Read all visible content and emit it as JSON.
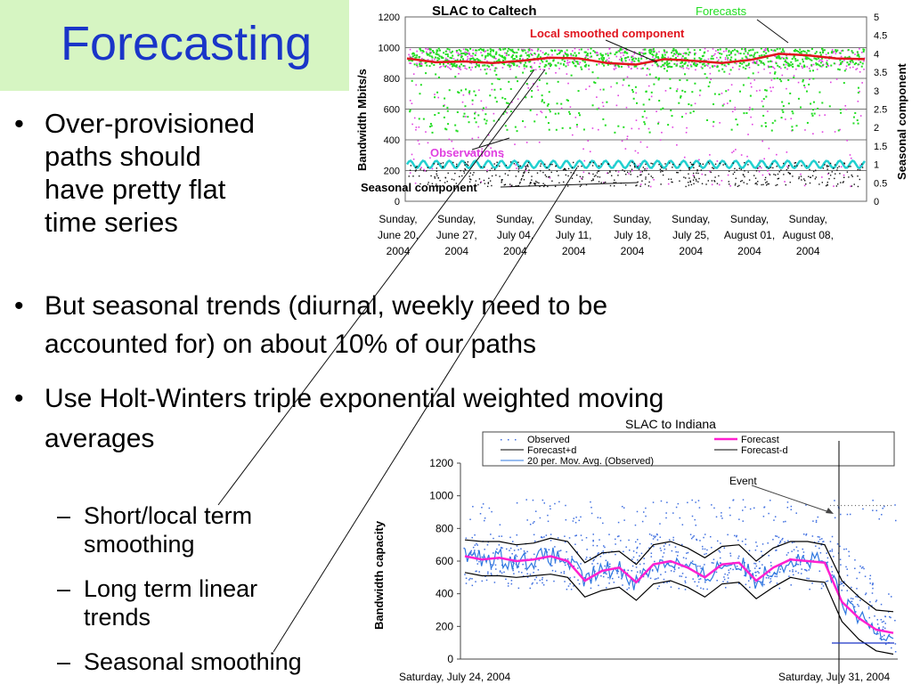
{
  "slide": {
    "title": "Forecasting",
    "bullets": [
      {
        "lines": [
          "Over-provisioned",
          "paths should",
          "have pretty flat",
          "time series"
        ]
      },
      {
        "lines": [
          "But seasonal trends (diurnal, weekly need to be",
          "accounted for) on about 10% of our paths"
        ]
      },
      {
        "lines": [
          "Use Holt-Winters triple exponential  weighted moving",
          "averages"
        ]
      }
    ],
    "sub_bullets": [
      {
        "lines": [
          "Short/local term",
          "smoothing"
        ]
      },
      {
        "lines": [
          "Long term linear",
          "trends"
        ]
      },
      {
        "lines": [
          "Seasonal smoothing"
        ]
      }
    ],
    "bullet_glyph": "•",
    "dash_glyph": "–"
  },
  "colors": {
    "title_text": "#1a35c8",
    "title_background": "#d6f5c2",
    "forecast_green": "#22dd22",
    "local_red": "#e0141e",
    "observation_magenta": "#e040e0",
    "seasonal_cyan": "#22d0d0",
    "observed_blue": "#3f6fe0",
    "moving_avg_blue": "#2f78e0",
    "forecast_pink": "#ff20d0"
  },
  "chart_data": [
    {
      "type": "scatter",
      "title": "SLAC to Caltech",
      "ylabel": "Bandwidth Mbits/s",
      "y2label": "Seasonal component",
      "ylim": [
        0,
        1200
      ],
      "yticks": [
        0,
        200,
        400,
        600,
        800,
        1000,
        1200
      ],
      "y2lim": [
        0,
        5
      ],
      "y2ticks": [
        "0",
        "0.5",
        "1",
        "1.5",
        "2",
        "2.5",
        "3",
        "3.5",
        "4",
        "4.5",
        "5"
      ],
      "x_ticks": [
        [
          "Sunday,",
          "June 20,",
          "2004"
        ],
        [
          "Sunday,",
          "June 27,",
          "2004"
        ],
        [
          "Sunday,",
          "July 04,",
          "2004"
        ],
        [
          "Sunday,",
          "July 11,",
          "2004"
        ],
        [
          "Sunday,",
          "July 18,",
          "2004"
        ],
        [
          "Sunday,",
          "July 25,",
          "2004"
        ],
        [
          "Sunday,",
          "August 01,",
          "2004"
        ],
        [
          "Sunday,",
          "August 08,",
          "2004"
        ]
      ],
      "annotations": {
        "forecasts": "Forecasts",
        "local": "Local smoothed component",
        "observations": "Observations",
        "seasonal": "Seasonal component"
      },
      "series": [
        {
          "name": "Forecasts",
          "band": [
            880,
            1000
          ]
        },
        {
          "name": "Local smoothed component",
          "values": [
            930,
            905,
            910,
            900,
            915,
            935,
            930,
            900,
            890,
            925,
            915,
            900,
            920,
            960,
            950,
            930,
            925
          ]
        },
        {
          "name": "Observations",
          "values_range": [
            100,
            1000
          ]
        },
        {
          "name": "Seasonal component",
          "values_range": [
            0.9,
            1.1
          ]
        }
      ],
      "grid": "horizontal"
    },
    {
      "type": "line",
      "title": "SLAC to Indiana",
      "ylabel": "Bandwidth capacity",
      "ylim": [
        0,
        1200
      ],
      "yticks": [
        0,
        200,
        400,
        600,
        800,
        1000,
        1200
      ],
      "x_ticks": [
        "Saturday, July 24, 2004",
        "Saturday, July 31, 2004"
      ],
      "legend": [
        "Observed",
        "Forecast",
        "Forecast+d",
        "Forecast-d",
        "20 per. Mov. Avg. (Observed)"
      ],
      "legend_position": "top",
      "annotation": "Event",
      "series": [
        {
          "name": "Forecast",
          "values": [
            630,
            610,
            620,
            600,
            610,
            630,
            600,
            480,
            540,
            560,
            470,
            580,
            600,
            560,
            500,
            580,
            590,
            480,
            560,
            610,
            600,
            590,
            350,
            250,
            180,
            160
          ]
        },
        {
          "name": "Forecast+d",
          "values": [
            730,
            720,
            720,
            700,
            710,
            740,
            720,
            590,
            650,
            660,
            580,
            700,
            720,
            680,
            620,
            690,
            700,
            600,
            680,
            720,
            720,
            700,
            480,
            380,
            300,
            290
          ]
        },
        {
          "name": "Forecast-d",
          "values": [
            530,
            510,
            510,
            500,
            510,
            520,
            500,
            380,
            420,
            440,
            360,
            460,
            480,
            440,
            380,
            460,
            470,
            370,
            440,
            500,
            480,
            470,
            230,
            120,
            50,
            30
          ]
        }
      ]
    }
  ]
}
